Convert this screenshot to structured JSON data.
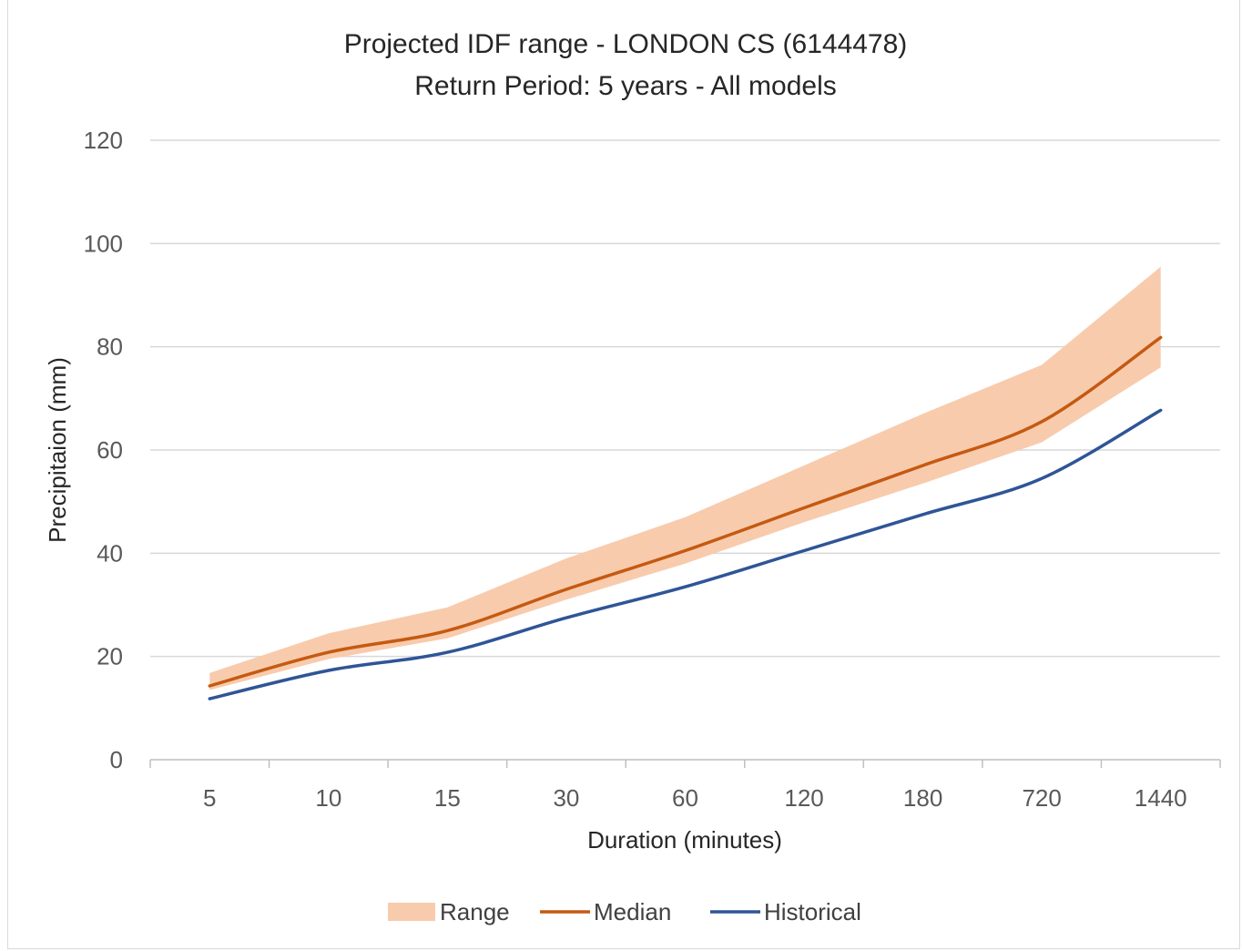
{
  "chart_data": {
    "type": "line",
    "title": "Projected IDF range -  LONDON CS (6144478)",
    "subtitle": "Return Period: 5 years - All models",
    "xlabel": "Duration (minutes)",
    "ylabel": "Precipitaion (mm)",
    "categories": [
      "5",
      "10",
      "15",
      "30",
      "60",
      "120",
      "180",
      "720",
      "1440"
    ],
    "y_ticks": [
      "0",
      "20",
      "40",
      "60",
      "80",
      "100",
      "120"
    ],
    "ylim": [
      0,
      120
    ],
    "grid": true,
    "legend_position": "bottom",
    "series": [
      {
        "name": "Range",
        "kind": "area",
        "color": "#f8cbad",
        "lower": [
          13.5,
          19.5,
          23.5,
          31.0,
          38.0,
          46.0,
          53.5,
          61.5,
          76.0
        ],
        "upper": [
          16.8,
          24.5,
          29.5,
          39.0,
          47.0,
          57.0,
          67.0,
          76.5,
          95.5
        ]
      },
      {
        "name": "Median",
        "kind": "line",
        "color": "#c55a11",
        "values": [
          14.3,
          20.8,
          25.0,
          33.0,
          40.5,
          48.8,
          57.0,
          65.5,
          81.8
        ]
      },
      {
        "name": "Historical",
        "kind": "line",
        "color": "#2f5597",
        "values": [
          11.8,
          17.3,
          20.8,
          27.5,
          33.5,
          40.5,
          47.5,
          54.5,
          67.7
        ]
      }
    ]
  }
}
